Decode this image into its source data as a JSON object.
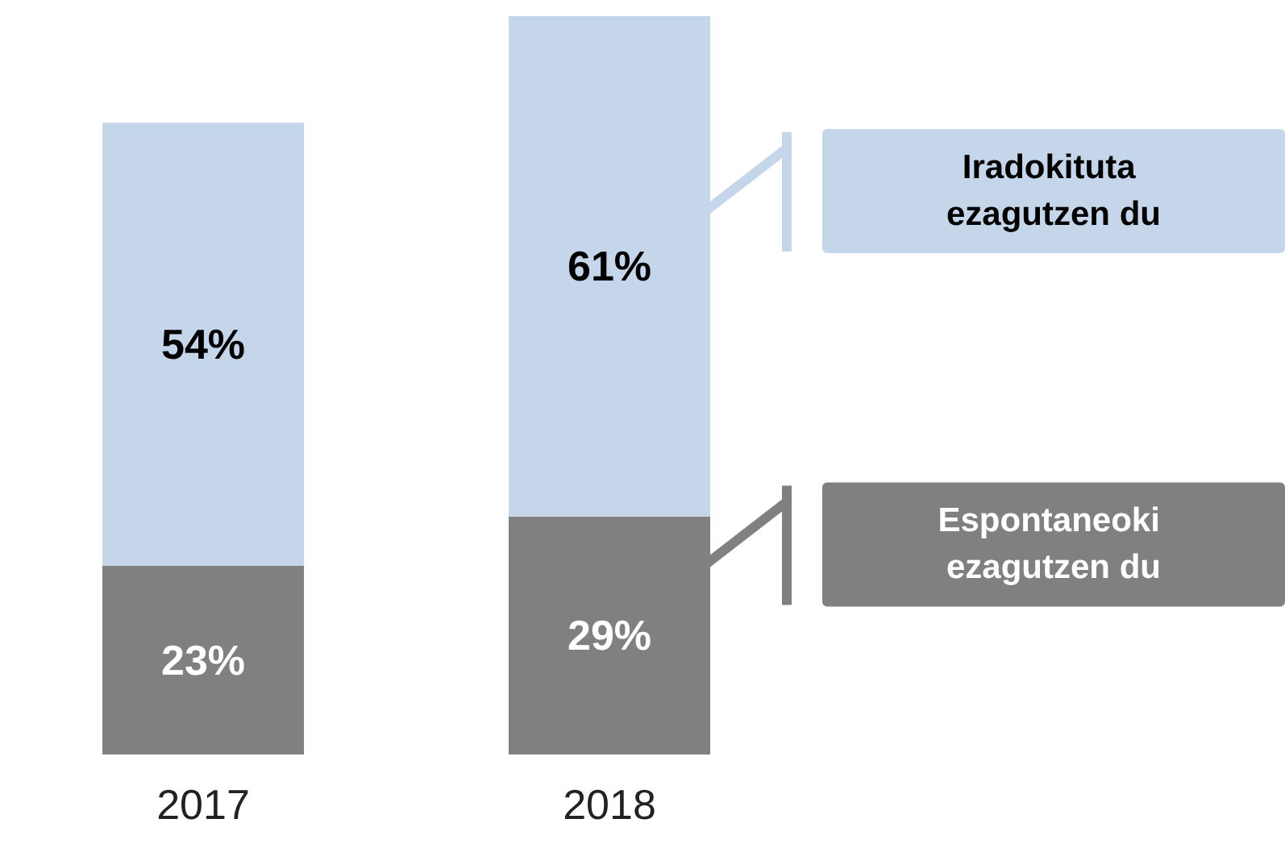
{
  "chart_data": {
    "type": "bar",
    "stacked": true,
    "legend": "right",
    "categories": [
      "2017",
      "2018"
    ],
    "series": [
      {
        "name": "Espontaneoki ezagutzen du",
        "color": "#808080",
        "values": [
          23,
          29
        ],
        "value_labels": [
          "23%",
          "29%"
        ]
      },
      {
        "name": "Iradokituta ezagutzen du",
        "color": "#c5d5ea",
        "values": [
          54,
          61
        ],
        "value_labels": [
          "54%",
          "61%"
        ]
      }
    ]
  }
}
